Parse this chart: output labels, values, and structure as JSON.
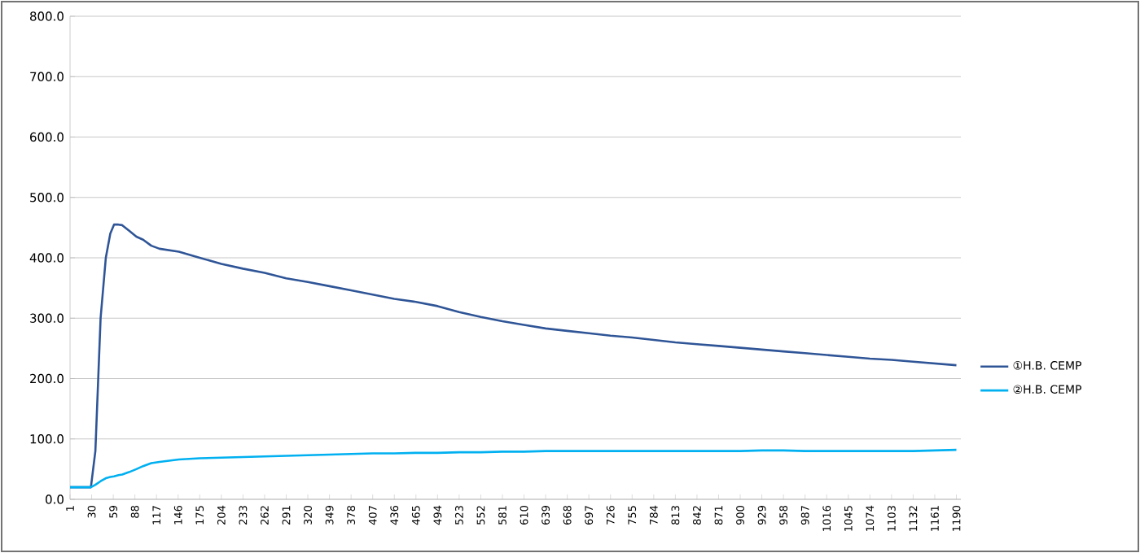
{
  "chart_data": {
    "type": "line",
    "x": [
      1,
      20,
      29,
      35,
      42,
      49,
      55,
      60,
      66,
      71,
      80,
      90,
      99,
      110,
      121,
      147,
      175,
      204,
      233,
      262,
      291,
      320,
      349,
      378,
      407,
      436,
      465,
      494,
      523,
      552,
      581,
      610,
      639,
      668,
      697,
      726,
      755,
      784,
      813,
      842,
      871,
      900,
      929,
      958,
      987,
      1016,
      1045,
      1074,
      1103,
      1132,
      1161,
      1190
    ],
    "series": [
      {
        "name": "①H.B. CEMP",
        "color": "#2f5597",
        "values": [
          20,
          20,
          20,
          80,
          300,
          400,
          440,
          455,
          455,
          454,
          445,
          435,
          430,
          420,
          415,
          410,
          400,
          390,
          382,
          375,
          366,
          360,
          353,
          346,
          339,
          332,
          327,
          320,
          310,
          302,
          295,
          289,
          283,
          279,
          275,
          271,
          268,
          264,
          260,
          257,
          254,
          251,
          248,
          245,
          242,
          239,
          236,
          233,
          231,
          228,
          225,
          222
        ]
      },
      {
        "name": "②H.B. CEMP",
        "color": "#00b0f0",
        "values": [
          20,
          20,
          20,
          24,
          30,
          35,
          37,
          38,
          40,
          41,
          45,
          50,
          55,
          60,
          62,
          66,
          68,
          69,
          70,
          71,
          72,
          73,
          74,
          75,
          76,
          76,
          77,
          77,
          78,
          78,
          79,
          79,
          80,
          80,
          80,
          80,
          80,
          80,
          80,
          80,
          80,
          80,
          81,
          81,
          80,
          80,
          80,
          80,
          80,
          80,
          81,
          82
        ]
      }
    ],
    "xlim": [
      1,
      1196
    ],
    "xticks": [
      1,
      30,
      59,
      88,
      117,
      146,
      175,
      204,
      233,
      262,
      291,
      320,
      349,
      378,
      407,
      436,
      465,
      494,
      523,
      552,
      581,
      610,
      639,
      668,
      697,
      726,
      755,
      784,
      813,
      842,
      871,
      900,
      929,
      958,
      987,
      1016,
      1045,
      1074,
      1103,
      1132,
      1161,
      1190
    ],
    "ylim": [
      0,
      800
    ],
    "yticks": [
      {
        "value": 0,
        "label": "0.0"
      },
      {
        "value": 100,
        "label": "100.0"
      },
      {
        "value": 200,
        "label": "200.0"
      },
      {
        "value": 300,
        "label": "300.0"
      },
      {
        "value": 400,
        "label": "400.0"
      },
      {
        "value": 500,
        "label": "500.0"
      },
      {
        "value": 600,
        "label": "600.0"
      },
      {
        "value": 700,
        "label": "700.0"
      },
      {
        "value": 800,
        "label": "800.0"
      }
    ],
    "grid": "y",
    "legend": "right",
    "marker": "none",
    "line_style": "solid"
  }
}
